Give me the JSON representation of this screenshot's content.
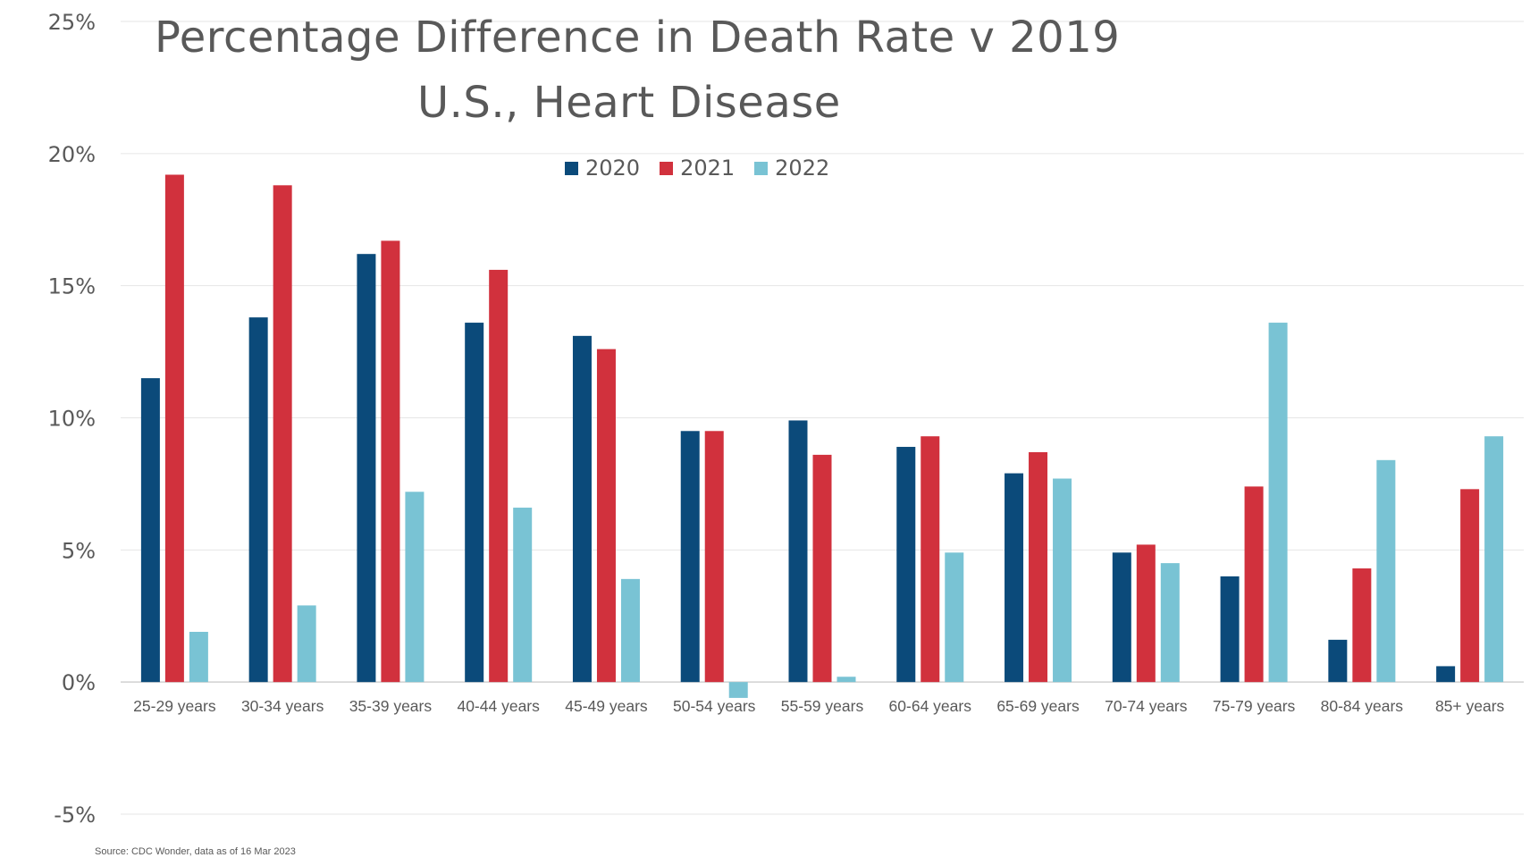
{
  "chart_data": {
    "type": "bar",
    "title": "Percentage Difference in Death Rate v 2019",
    "subtitle": "U.S., Heart Disease",
    "categories": [
      "25-29 years",
      "30-34 years",
      "35-39 years",
      "40-44 years",
      "45-49 years",
      "50-54 years",
      "55-59 years",
      "60-64 years",
      "65-69 years",
      "70-74 years",
      "75-79 years",
      "80-84 years",
      "85+ years"
    ],
    "series": [
      {
        "name": "2020",
        "color": "#0b4a7a",
        "values": [
          11.5,
          13.8,
          16.2,
          13.6,
          13.1,
          9.5,
          9.9,
          8.9,
          7.9,
          4.9,
          4.0,
          1.6,
          0.6
        ]
      },
      {
        "name": "2021",
        "color": "#d1313d",
        "values": [
          19.2,
          18.8,
          16.7,
          15.6,
          12.6,
          9.5,
          8.6,
          9.3,
          8.7,
          5.2,
          7.4,
          4.3,
          7.3
        ]
      },
      {
        "name": "2022",
        "color": "#79c3d4",
        "values": [
          1.9,
          2.9,
          7.2,
          6.6,
          3.9,
          -0.6,
          0.2,
          4.9,
          7.7,
          4.5,
          13.6,
          8.4,
          9.3
        ]
      }
    ],
    "ylim": [
      -5,
      25
    ],
    "yticks": [
      -5,
      0,
      5,
      10,
      15,
      20,
      25
    ],
    "ytick_labels": [
      "-5%",
      "0%",
      "5%",
      "10%",
      "15%",
      "20%",
      "25%"
    ],
    "xlabel": "",
    "ylabel": "",
    "grid": true,
    "legend_position": "top-center"
  },
  "source_note": "Source: CDC Wonder, data as of 16 Mar 2023"
}
